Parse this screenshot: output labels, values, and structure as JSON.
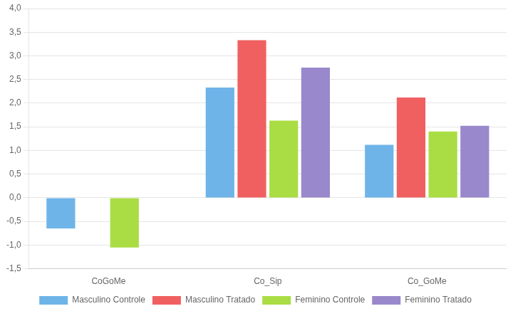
{
  "chart_data": {
    "type": "bar",
    "categories": [
      "CoGoMe",
      "Co_Sip",
      "Co_GoMe"
    ],
    "series": [
      {
        "name": "Masculino Controle",
        "color": "#6EB4E8",
        "values": [
          -0.65,
          2.33,
          1.12
        ]
      },
      {
        "name": "Masculino Tratado",
        "color": "#F06060",
        "values": [
          0.0,
          3.33,
          2.12
        ]
      },
      {
        "name": "Feminino Controle",
        "color": "#AADD44",
        "values": [
          -1.05,
          1.63,
          1.4
        ]
      },
      {
        "name": "Feminino Tratado",
        "color": "#9988CC",
        "values": [
          0.0,
          2.75,
          1.52
        ]
      }
    ],
    "ylim": [
      -1.5,
      4.0
    ],
    "yticks": [
      {
        "value": -1.5,
        "label": "-1,5"
      },
      {
        "value": -1.0,
        "label": "-1,0"
      },
      {
        "value": -0.5,
        "label": "-0,5"
      },
      {
        "value": 0.0,
        "label": "0,0"
      },
      {
        "value": 0.5,
        "label": "0,5"
      },
      {
        "value": 1.0,
        "label": "1,0"
      },
      {
        "value": 1.5,
        "label": "1,5"
      },
      {
        "value": 2.0,
        "label": "2,0"
      },
      {
        "value": 2.5,
        "label": "2,5"
      },
      {
        "value": 3.0,
        "label": "3,0"
      },
      {
        "value": 3.5,
        "label": "3,5"
      },
      {
        "value": 4.0,
        "label": "4,0"
      }
    ],
    "grid": true,
    "legend": "bottom"
  }
}
